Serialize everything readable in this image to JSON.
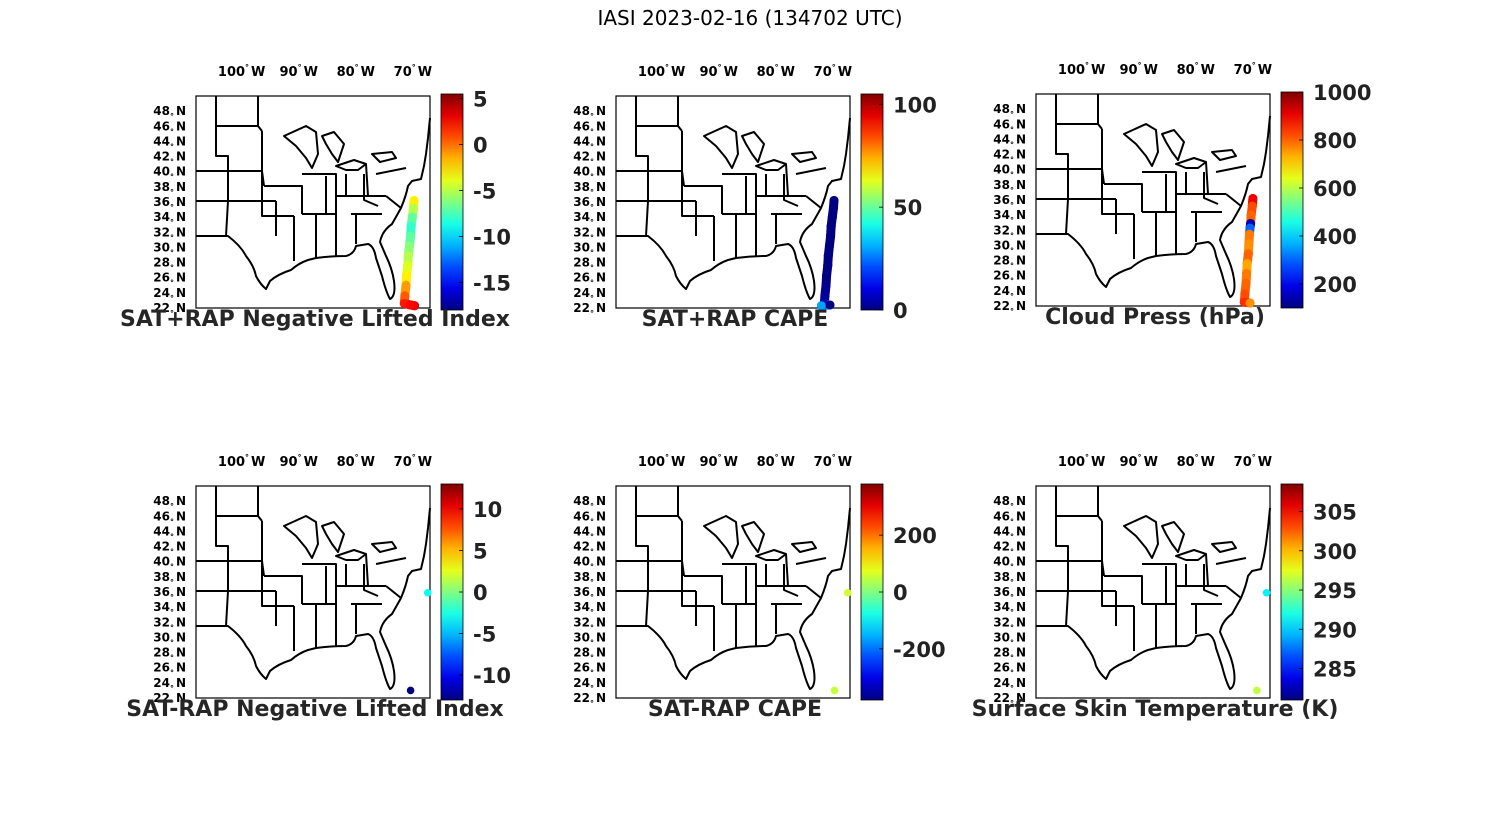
{
  "figure": {
    "title": "IASI 2023-02-16 (134702 UTC)"
  },
  "axes": {
    "lon_labels": [
      {
        "deg": "100",
        "hemi": "W",
        "value": -100
      },
      {
        "deg": "90",
        "hemi": "W",
        "value": -90
      },
      {
        "deg": "80",
        "hemi": "W",
        "value": -80
      },
      {
        "deg": "70",
        "hemi": "W",
        "value": -70
      }
    ],
    "lat_labels": [
      {
        "deg": "48",
        "hemi": "N",
        "value": 48
      },
      {
        "deg": "46",
        "hemi": "N",
        "value": 46
      },
      {
        "deg": "44",
        "hemi": "N",
        "value": 44
      },
      {
        "deg": "42",
        "hemi": "N",
        "value": 42
      },
      {
        "deg": "40",
        "hemi": "N",
        "value": 40
      },
      {
        "deg": "38",
        "hemi": "N",
        "value": 38
      },
      {
        "deg": "36",
        "hemi": "N",
        "value": 36
      },
      {
        "deg": "34",
        "hemi": "N",
        "value": 34
      },
      {
        "deg": "32",
        "hemi": "N",
        "value": 32
      },
      {
        "deg": "30",
        "hemi": "N",
        "value": 30
      },
      {
        "deg": "28",
        "hemi": "N",
        "value": 28
      },
      {
        "deg": "26",
        "hemi": "N",
        "value": 26
      },
      {
        "deg": "24",
        "hemi": "N",
        "value": 24
      },
      {
        "deg": "22",
        "hemi": "N",
        "value": 22
      }
    ],
    "lon_range": [
      -108,
      -67
    ],
    "lat_range": [
      22,
      50
    ],
    "degree_symbol": "°",
    "colormap": "jet"
  },
  "panels": [
    {
      "id": "neg-li-sum",
      "title": "SAT+RAP Negative Lifted Index",
      "clim": [
        -18,
        5.5
      ],
      "ticks": [
        {
          "value": -15,
          "label": "-15"
        },
        {
          "value": -10,
          "label": "-10"
        },
        {
          "value": -5,
          "label": "-5"
        },
        {
          "value": 0,
          "label": "0"
        },
        {
          "value": 5,
          "label": "5"
        }
      ],
      "points": [
        {
          "lon": -69.8,
          "lat": 36.2,
          "v": -3
        },
        {
          "lon": -69.9,
          "lat": 35.2,
          "v": -5
        },
        {
          "lon": -70.1,
          "lat": 34.0,
          "v": -7
        },
        {
          "lon": -70.3,
          "lat": 32.8,
          "v": -8
        },
        {
          "lon": -70.4,
          "lat": 31.5,
          "v": -7
        },
        {
          "lon": -70.6,
          "lat": 30.2,
          "v": -6
        },
        {
          "lon": -70.8,
          "lat": 28.9,
          "v": -5
        },
        {
          "lon": -70.9,
          "lat": 27.6,
          "v": -4
        },
        {
          "lon": -71.1,
          "lat": 26.3,
          "v": -3
        },
        {
          "lon": -71.2,
          "lat": 25.0,
          "v": -1
        },
        {
          "lon": -71.4,
          "lat": 23.6,
          "v": 0.5
        },
        {
          "lon": -71.5,
          "lat": 22.6,
          "v": 2
        },
        {
          "lon": -69.7,
          "lat": 22.3,
          "v": 3
        },
        {
          "lon": -70.5,
          "lat": 22.4,
          "v": 2.5
        }
      ]
    },
    {
      "id": "cape-sum",
      "title": "SAT+RAP CAPE",
      "clim": [
        0,
        105
      ],
      "ticks": [
        {
          "value": 0,
          "label": "0"
        },
        {
          "value": 50,
          "label": "50"
        },
        {
          "value": 100,
          "label": "100"
        }
      ],
      "points": [
        {
          "lon": -69.8,
          "lat": 36.2,
          "v": 0
        },
        {
          "lon": -69.9,
          "lat": 35.2,
          "v": 0
        },
        {
          "lon": -70.1,
          "lat": 34.0,
          "v": 0
        },
        {
          "lon": -70.3,
          "lat": 32.8,
          "v": 0
        },
        {
          "lon": -70.4,
          "lat": 31.5,
          "v": 0
        },
        {
          "lon": -70.6,
          "lat": 30.2,
          "v": 0
        },
        {
          "lon": -70.8,
          "lat": 28.9,
          "v": 0
        },
        {
          "lon": -70.9,
          "lat": 27.6,
          "v": 0
        },
        {
          "lon": -71.1,
          "lat": 26.3,
          "v": 0
        },
        {
          "lon": -71.2,
          "lat": 25.0,
          "v": 2
        },
        {
          "lon": -71.4,
          "lat": 23.6,
          "v": 3
        },
        {
          "lon": -71.5,
          "lat": 22.5,
          "v": 6
        },
        {
          "lon": -72.0,
          "lat": 22.3,
          "v": 30
        },
        {
          "lon": -70.5,
          "lat": 22.4,
          "v": 0
        }
      ]
    },
    {
      "id": "cloud-press",
      "title": "Cloud Press (hPa)",
      "clim": [
        100,
        1000
      ],
      "ticks": [
        {
          "value": 200,
          "label": "200"
        },
        {
          "value": 400,
          "label": "400"
        },
        {
          "value": 600,
          "label": "600"
        },
        {
          "value": 800,
          "label": "800"
        },
        {
          "value": 1000,
          "label": "1000"
        }
      ],
      "points": [
        {
          "lon": -70.0,
          "lat": 36.2,
          "v": 900
        },
        {
          "lon": -70.1,
          "lat": 35.2,
          "v": 820
        },
        {
          "lon": -70.3,
          "lat": 34.0,
          "v": 800
        },
        {
          "lon": -70.4,
          "lat": 32.9,
          "v": 150
        },
        {
          "lon": -70.5,
          "lat": 32.3,
          "v": 300
        },
        {
          "lon": -70.6,
          "lat": 31.5,
          "v": 780
        },
        {
          "lon": -70.7,
          "lat": 30.2,
          "v": 760
        },
        {
          "lon": -70.8,
          "lat": 28.9,
          "v": 800
        },
        {
          "lon": -71.0,
          "lat": 27.6,
          "v": 740
        },
        {
          "lon": -71.1,
          "lat": 26.3,
          "v": 780
        },
        {
          "lon": -71.2,
          "lat": 25.0,
          "v": 800
        },
        {
          "lon": -71.4,
          "lat": 23.6,
          "v": 820
        },
        {
          "lon": -71.5,
          "lat": 22.5,
          "v": 850
        },
        {
          "lon": -70.5,
          "lat": 22.4,
          "v": 760
        }
      ]
    },
    {
      "id": "neg-li-diff",
      "title": "SAT-RAP Negative Lifted Index",
      "clim": [
        -13,
        13
      ],
      "ticks": [
        {
          "value": -10,
          "label": "-10"
        },
        {
          "value": -5,
          "label": "-5"
        },
        {
          "value": 0,
          "label": "0"
        },
        {
          "value": 5,
          "label": "5"
        },
        {
          "value": 10,
          "label": "10"
        }
      ],
      "points": [
        {
          "lon": -67.4,
          "lat": 35.9,
          "v": -3
        },
        {
          "lon": -70.4,
          "lat": 23.0,
          "v": -13
        }
      ]
    },
    {
      "id": "cape-diff",
      "title": "SAT-RAP CAPE",
      "clim": [
        -380,
        380
      ],
      "ticks": [
        {
          "value": -200,
          "label": "-200"
        },
        {
          "value": 0,
          "label": "0"
        },
        {
          "value": 200,
          "label": "200"
        }
      ],
      "points": [
        {
          "lon": -67.4,
          "lat": 35.9,
          "v": 60
        },
        {
          "lon": -69.7,
          "lat": 23.0,
          "v": 50
        }
      ]
    },
    {
      "id": "skin-temp",
      "title": "Surface Skin Temperature (K)",
      "clim": [
        281,
        308.5
      ],
      "ticks": [
        {
          "value": 285,
          "label": "285"
        },
        {
          "value": 290,
          "label": "290"
        },
        {
          "value": 295,
          "label": "295"
        },
        {
          "value": 300,
          "label": "300"
        },
        {
          "value": 305,
          "label": "305"
        }
      ],
      "points": [
        {
          "lon": -67.6,
          "lat": 35.9,
          "v": 291
        },
        {
          "lon": -69.3,
          "lat": 23.0,
          "v": 296.5
        }
      ]
    }
  ]
}
